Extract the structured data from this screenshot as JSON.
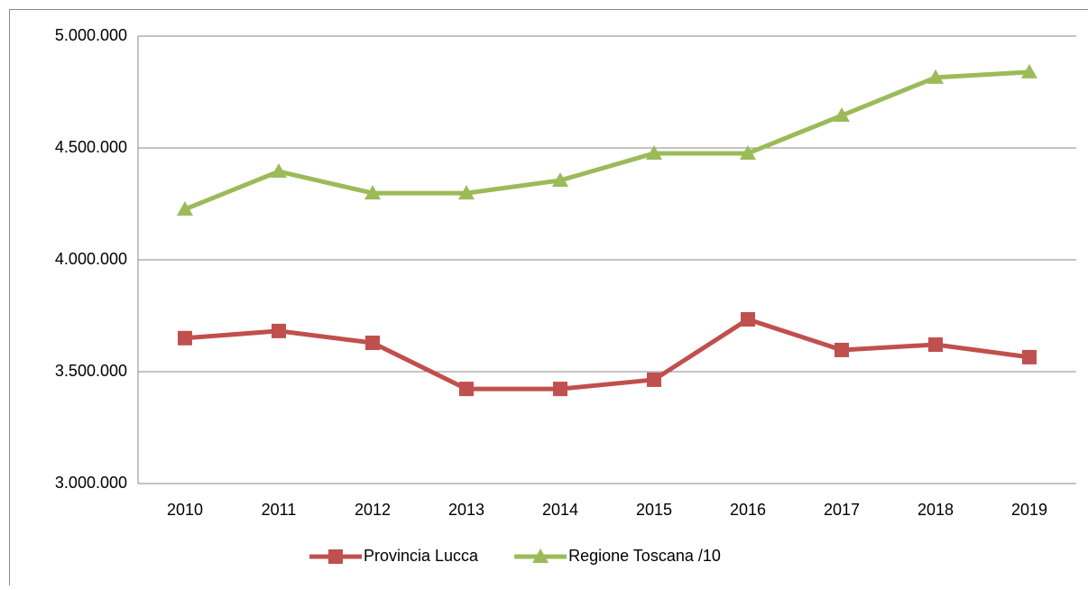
{
  "chart_data": {
    "type": "line",
    "categories": [
      "2010",
      "2011",
      "2012",
      "2013",
      "2014",
      "2015",
      "2016",
      "2017",
      "2018",
      "2019"
    ],
    "series": [
      {
        "name": "Provincia Lucca",
        "color": "#c0504d",
        "marker": "square",
        "values": [
          3650000,
          3682000,
          3629000,
          3423000,
          3423000,
          3464000,
          3734000,
          3597000,
          3621000,
          3565000
        ]
      },
      {
        "name": "Regione Toscana /10",
        "color": "#9bbb59",
        "marker": "triangle",
        "values": [
          4226000,
          4395000,
          4298000,
          4298000,
          4355000,
          4476000,
          4476000,
          4645000,
          4815000,
          4839000
        ]
      }
    ],
    "ylim": [
      3000000,
      5000000
    ],
    "yticks": [
      {
        "value": 3000000,
        "label": "3.000.000"
      },
      {
        "value": 3500000,
        "label": "3.500.000"
      },
      {
        "value": 4000000,
        "label": "4.000.000"
      },
      {
        "value": 4500000,
        "label": "4.500.000"
      },
      {
        "value": 5000000,
        "label": "5.000.000"
      }
    ],
    "grid": true,
    "legend": "bottom"
  }
}
